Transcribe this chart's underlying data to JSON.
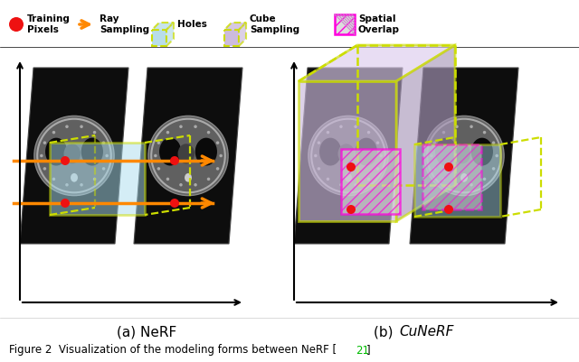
{
  "background": "#ffffff",
  "figsize": [
    6.4,
    4.01
  ],
  "dpi": 100,
  "subtitle_a": "(a) NeRF",
  "subtitle_b_normal": "(b) ",
  "subtitle_b_italic": "CuNeRF",
  "caption_normal": "Figure 2  Visualization of the modeling forms between NeRF [",
  "caption_ref": "21",
  "caption_end": "]",
  "caption_ref_color": "#00bb00",
  "red_dot_color": "#ee1111",
  "orange_color": "#ff8800",
  "yg_color": "#ccdd00",
  "cyan_fill": "#b8dde8",
  "lavender_fill": "#ccbbdd",
  "magenta_color": "#ff00dd",
  "gray_hatch_color": "#888888"
}
